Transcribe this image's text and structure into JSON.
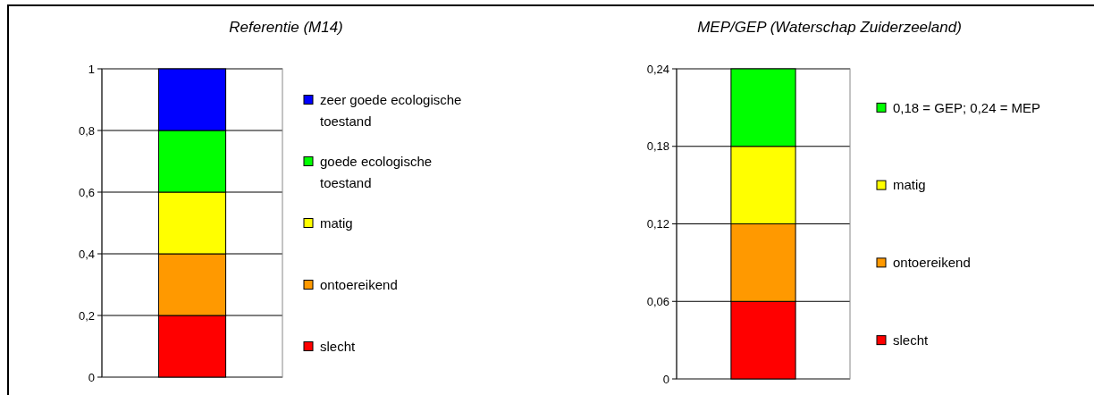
{
  "chart_data": [
    {
      "type": "bar",
      "title": "Referentie (M14)",
      "stacked": true,
      "categories": [
        null
      ],
      "series": [
        {
          "name": "slecht",
          "color": "#ff0000",
          "values": [
            0.2
          ]
        },
        {
          "name": "ontoereikend",
          "color": "#ff9900",
          "values": [
            0.2
          ]
        },
        {
          "name": "matig",
          "color": "#ffff00",
          "values": [
            0.2
          ]
        },
        {
          "name": "goede ecologische toestand",
          "color": "#00ff00",
          "values": [
            0.2
          ]
        },
        {
          "name": "zeer goede ecologische toestand",
          "color": "#0000ff",
          "values": [
            0.2
          ]
        }
      ],
      "ylim": [
        0,
        1
      ],
      "yticks": [
        {
          "value": 0,
          "label": "0"
        },
        {
          "value": 0.2,
          "label": "0,2"
        },
        {
          "value": 0.4,
          "label": "0,4"
        },
        {
          "value": 0.6,
          "label": "0,6"
        },
        {
          "value": 0.8,
          "label": "0,8"
        },
        {
          "value": 1,
          "label": "1"
        }
      ],
      "grid": "y",
      "legend": "right"
    },
    {
      "type": "bar",
      "title": "MEP/GEP (Waterschap Zuiderzeeland)",
      "stacked": true,
      "categories": [
        null
      ],
      "series": [
        {
          "name": "slecht",
          "color": "#ff0000",
          "values": [
            0.06
          ]
        },
        {
          "name": "ontoereikend",
          "color": "#ff9900",
          "values": [
            0.06
          ]
        },
        {
          "name": "matig",
          "color": "#ffff00",
          "values": [
            0.06
          ]
        },
        {
          "name": "0,18 = GEP; 0,24 = MEP",
          "color": "#00ff00",
          "values": [
            0.06
          ]
        }
      ],
      "ylim": [
        0,
        0.24
      ],
      "yticks": [
        {
          "value": 0,
          "label": "0"
        },
        {
          "value": 0.06,
          "label": "0,06"
        },
        {
          "value": 0.12,
          "label": "0,12"
        },
        {
          "value": 0.18,
          "label": "0,18"
        },
        {
          "value": 0.24,
          "label": "0,24"
        }
      ],
      "grid": "y",
      "legend": "right"
    }
  ]
}
